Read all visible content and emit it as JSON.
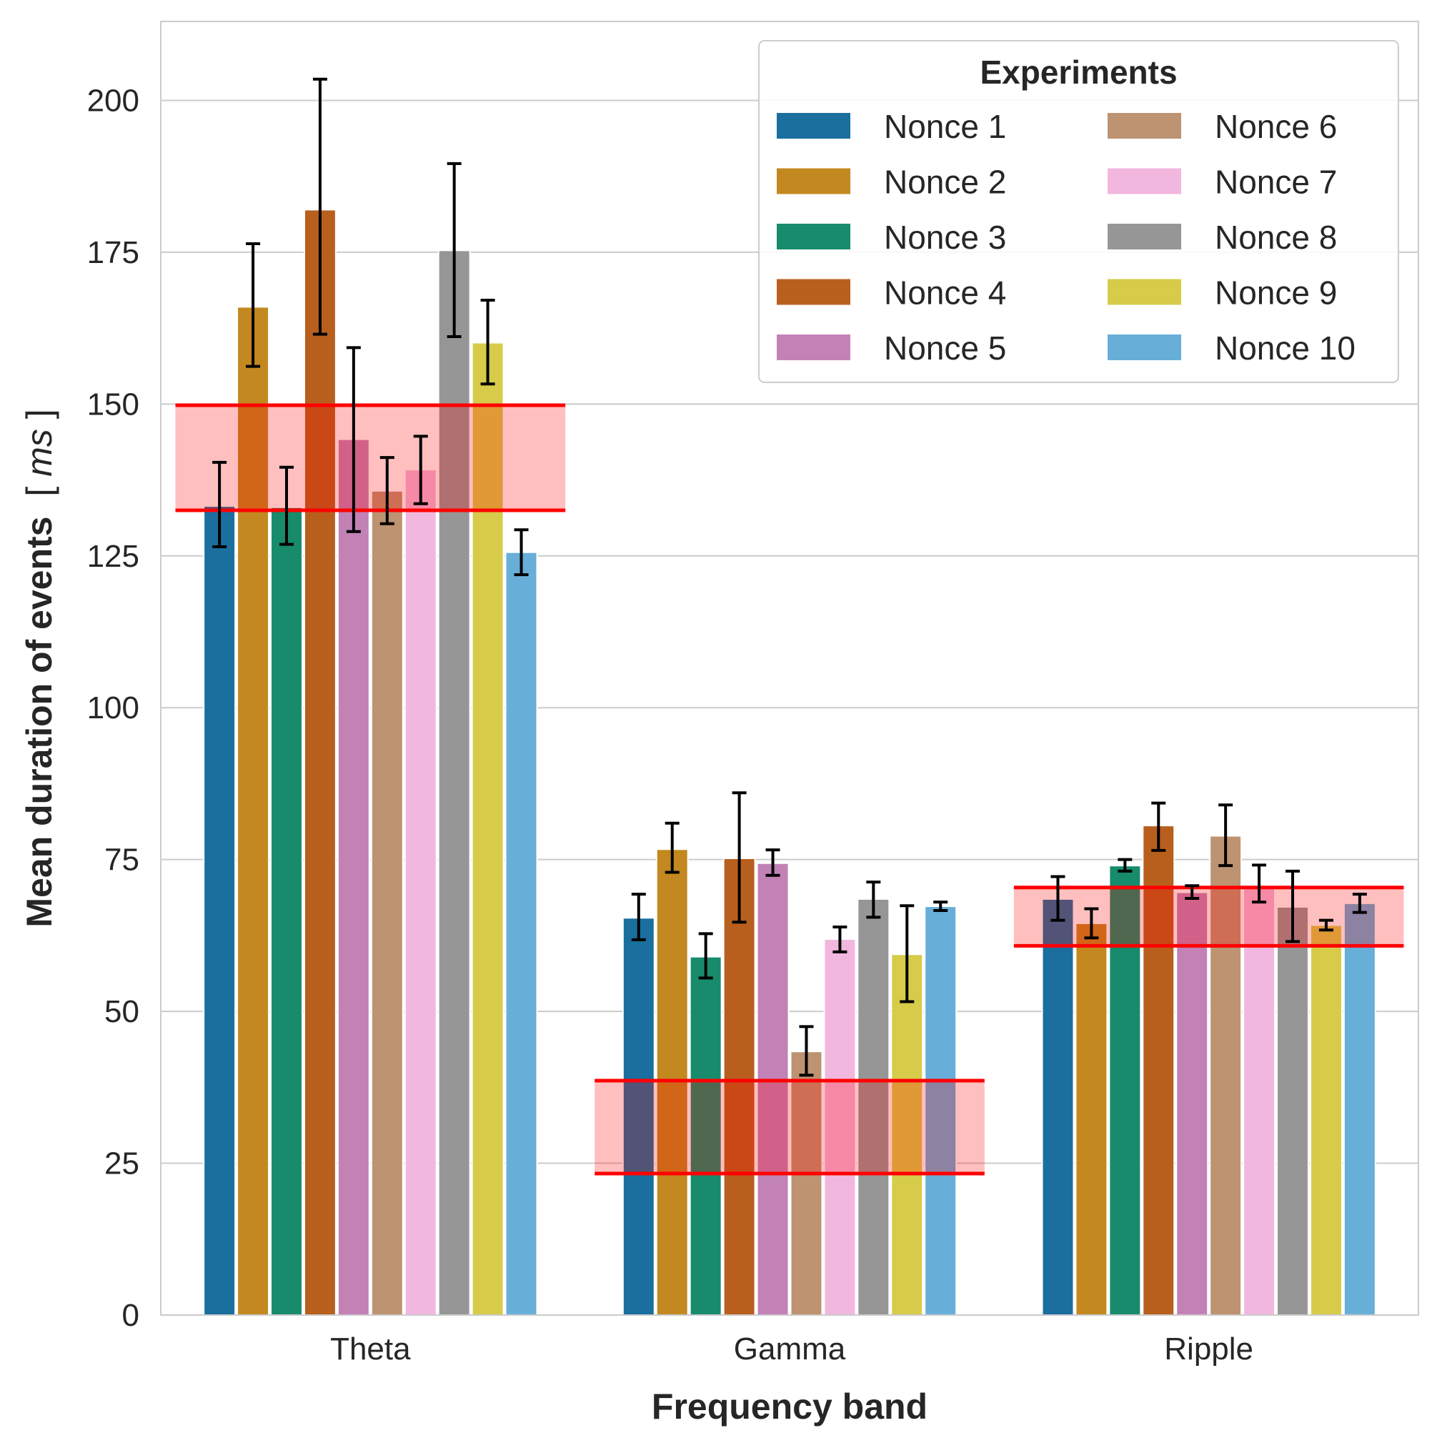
{
  "chart_data": {
    "type": "bar",
    "title": "",
    "xlabel": "Frequency band",
    "ylabel_main": "Mean duration of events",
    "ylabel_unit": "ms",
    "categories": [
      "Theta",
      "Gamma",
      "Ripple"
    ],
    "ylim": [
      0,
      213
    ],
    "yticks": [
      0,
      25,
      50,
      75,
      100,
      125,
      150,
      175,
      200
    ],
    "grid": true,
    "legend": {
      "title": "Experiments",
      "placement": "top-right",
      "columns": 2
    },
    "series": [
      {
        "name": "Nonce 1",
        "color": "#1a6f9f",
        "values": [
          133.2,
          65.4,
          68.5
        ],
        "err_low": [
          126.5,
          61.8,
          65.0
        ],
        "err_high": [
          140.4,
          69.3,
          72.2
        ]
      },
      {
        "name": "Nonce 2",
        "color": "#c38820",
        "values": [
          166.0,
          76.7,
          64.5
        ],
        "err_low": [
          156.2,
          72.9,
          62.1
        ],
        "err_high": [
          176.4,
          81.0,
          66.9
        ]
      },
      {
        "name": "Nonce 3",
        "color": "#178b6b",
        "values": [
          133.0,
          59.0,
          74.0
        ],
        "err_low": [
          126.9,
          55.5,
          73.1
        ],
        "err_high": [
          139.6,
          62.8,
          75.0
        ]
      },
      {
        "name": "Nonce 4",
        "color": "#b85f1e",
        "values": [
          182.0,
          75.2,
          80.6
        ],
        "err_low": [
          161.5,
          64.7,
          76.5
        ],
        "err_high": [
          203.5,
          86.0,
          84.3
        ]
      },
      {
        "name": "Nonce 5",
        "color": "#c282b6",
        "values": [
          144.2,
          74.4,
          69.6
        ],
        "err_low": [
          129.0,
          72.4,
          68.6
        ],
        "err_high": [
          159.3,
          76.6,
          70.7
        ]
      },
      {
        "name": "Nonce 6",
        "color": "#bd9372",
        "values": [
          135.7,
          43.4,
          78.9
        ],
        "err_low": [
          130.3,
          39.5,
          74.0
        ],
        "err_high": [
          141.2,
          47.5,
          84.0
        ]
      },
      {
        "name": "Nonce 7",
        "color": "#f2b7de",
        "values": [
          139.2,
          61.9,
          70.6
        ],
        "err_low": [
          133.6,
          59.8,
          68.0
        ],
        "err_high": [
          144.7,
          63.9,
          74.1
        ]
      },
      {
        "name": "Nonce 8",
        "color": "#969696",
        "values": [
          175.3,
          68.5,
          67.2
        ],
        "err_low": [
          161.1,
          65.5,
          61.5
        ],
        "err_high": [
          189.6,
          71.3,
          73.1
        ]
      },
      {
        "name": "Nonce 9",
        "color": "#d6cc49",
        "values": [
          160.1,
          59.4,
          64.2
        ],
        "err_low": [
          153.3,
          51.6,
          63.4
        ],
        "err_high": [
          167.1,
          67.4,
          65.0
        ]
      },
      {
        "name": "Nonce 10",
        "color": "#67aed8",
        "values": [
          125.6,
          67.3,
          67.8
        ],
        "err_low": [
          121.9,
          66.6,
          66.3
        ],
        "err_high": [
          129.3,
          68.0,
          69.3
        ]
      }
    ],
    "reference_bands": [
      {
        "category": "Theta",
        "low": 132.5,
        "high": 149.8
      },
      {
        "category": "Gamma",
        "low": 23.3,
        "high": 38.6
      },
      {
        "category": "Ripple",
        "low": 60.8,
        "high": 70.4
      }
    ]
  }
}
